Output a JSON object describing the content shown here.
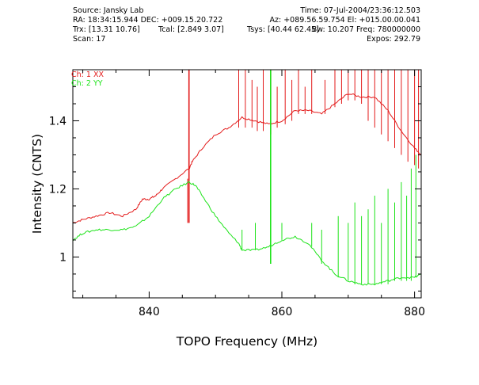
{
  "header": {
    "source": "Source: Jansky Lab",
    "time": "Time: 07-Jul-2004/23:36:12.503",
    "ra_dec": "RA: 18:34:15.944 DEC: +009.15.20.722",
    "az_el": "Az: +089.56.59.754 El: +015.00.00.041",
    "trx": "Trx: [13.31 10.76]",
    "tcal": "Tcal: [2.849 3.07]",
    "tsys": "Tsys: [40.44 62.45]",
    "freq": "Bw: 10.207 Freq: 780000000",
    "scan": "Scan: 17",
    "expos": "Expos: 292.79"
  },
  "colors": {
    "xx": "#e31a1a",
    "yy": "#1ee31a"
  },
  "chart_data": {
    "type": "line",
    "xlabel": "TOPO Frequency (MHz)",
    "ylabel": "Intensity (CNTS)",
    "xlim": [
      828.5,
      881
    ],
    "ylim": [
      0.88,
      1.55
    ],
    "x_ticks": [
      840,
      860,
      880
    ],
    "x_tick_labels": [
      "840",
      "860",
      "880"
    ],
    "y_ticks": [
      1.0,
      1.2,
      1.4
    ],
    "y_tick_labels": [
      "1",
      "1.2",
      "1.4"
    ],
    "legend_position": "top-left",
    "series": [
      {
        "key": "xx",
        "name": "Ch: 1 XX",
        "color": "#e31a1a",
        "x": [
          828.5,
          830,
          832,
          834,
          836,
          838,
          839,
          840,
          841,
          842,
          844,
          846,
          846.5,
          848,
          850,
          852,
          854,
          856,
          858,
          860,
          862,
          864,
          866,
          868,
          870,
          872,
          874,
          876,
          878,
          880,
          881
        ],
        "y": [
          1.1,
          1.11,
          1.12,
          1.13,
          1.12,
          1.14,
          1.17,
          1.17,
          1.18,
          1.2,
          1.23,
          1.26,
          1.28,
          1.32,
          1.36,
          1.38,
          1.41,
          1.4,
          1.39,
          1.4,
          1.43,
          1.43,
          1.42,
          1.45,
          1.48,
          1.47,
          1.47,
          1.43,
          1.37,
          1.32,
          1.3
        ],
        "spikes": [
          [
            846,
            1.1,
            1.55
          ],
          [
            845.8,
            1.1,
            1.23
          ],
          [
            853.5,
            1.38,
            1.55
          ],
          [
            854.5,
            1.38,
            1.55
          ],
          [
            855.5,
            1.38,
            1.52
          ],
          [
            856.3,
            1.37,
            1.5
          ],
          [
            857.2,
            1.37,
            1.55
          ],
          [
            858.3,
            1.36,
            1.55
          ],
          [
            859.3,
            1.38,
            1.5
          ],
          [
            860.5,
            1.39,
            1.55
          ],
          [
            861.5,
            1.4,
            1.52
          ],
          [
            862.5,
            1.42,
            1.55
          ],
          [
            863.5,
            1.42,
            1.5
          ],
          [
            864.5,
            1.42,
            1.55
          ],
          [
            866.5,
            1.42,
            1.52
          ],
          [
            868,
            1.44,
            1.55
          ],
          [
            869,
            1.45,
            1.55
          ],
          [
            870,
            1.46,
            1.55
          ],
          [
            871,
            1.46,
            1.55
          ],
          [
            872,
            1.45,
            1.55
          ],
          [
            873,
            1.4,
            1.55
          ],
          [
            874,
            1.38,
            1.55
          ],
          [
            875,
            1.36,
            1.55
          ],
          [
            876,
            1.34,
            1.55
          ],
          [
            877,
            1.32,
            1.55
          ],
          [
            878,
            1.3,
            1.55
          ],
          [
            879,
            1.28,
            1.55
          ],
          [
            880,
            1.27,
            1.55
          ],
          [
            880.6,
            1.26,
            1.55
          ]
        ]
      },
      {
        "key": "yy",
        "name": "Ch: 2 YY",
        "color": "#1ee31a",
        "x": [
          828.5,
          830,
          832,
          834,
          836,
          838,
          840,
          842,
          844,
          846,
          847,
          848,
          850,
          852,
          853.5,
          854,
          856,
          858,
          860,
          862,
          864,
          866,
          868,
          870,
          872,
          874,
          876,
          878,
          880,
          881
        ],
        "y": [
          1.05,
          1.07,
          1.08,
          1.08,
          1.08,
          1.09,
          1.12,
          1.17,
          1.2,
          1.22,
          1.21,
          1.18,
          1.12,
          1.07,
          1.04,
          1.02,
          1.02,
          1.03,
          1.05,
          1.06,
          1.04,
          0.99,
          0.95,
          0.93,
          0.92,
          0.92,
          0.93,
          0.94,
          0.94,
          0.95
        ],
        "spikes": [
          [
            858.3,
            0.98,
            1.55
          ],
          [
            854,
            1.02,
            1.08
          ],
          [
            856,
            1.02,
            1.1
          ],
          [
            860,
            1.05,
            1.1
          ],
          [
            864.5,
            1.03,
            1.1
          ],
          [
            866,
            0.98,
            1.08
          ],
          [
            868.5,
            0.94,
            1.12
          ],
          [
            870,
            0.93,
            1.1
          ],
          [
            871,
            0.92,
            1.16
          ],
          [
            872,
            0.92,
            1.12
          ],
          [
            873,
            0.92,
            1.14
          ],
          [
            874,
            0.92,
            1.18
          ],
          [
            875,
            0.92,
            1.1
          ],
          [
            876,
            0.92,
            1.2
          ],
          [
            877,
            0.93,
            1.16
          ],
          [
            878,
            0.93,
            1.22
          ],
          [
            878.8,
            0.93,
            1.18
          ],
          [
            879.5,
            0.93,
            1.26
          ],
          [
            880.2,
            0.94,
            1.3
          ]
        ]
      }
    ]
  }
}
